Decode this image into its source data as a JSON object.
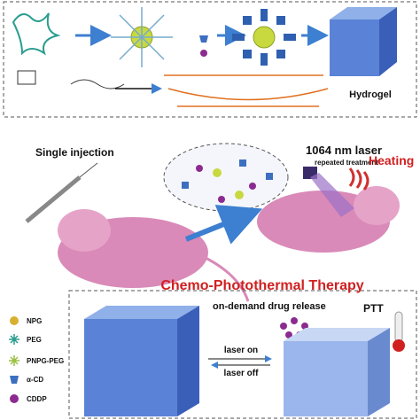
{
  "top_panel": {
    "product_label": "Hydrogel"
  },
  "middle": {
    "injection_label": "Single injection",
    "laser_label": "1064 nm laser",
    "laser_sublabel": "repeated treatment",
    "heating_label": "Heating"
  },
  "therapy": {
    "title": "Chemo-Photothermal Therapy",
    "release_label": "on-demand drug release",
    "ptt_label": "PTT",
    "laser_on": "laser on",
    "laser_off": "laser off"
  },
  "legend": {
    "items": [
      "NPG",
      "PEG",
      "PNPG-PEG",
      "α-CD",
      "CDDP"
    ]
  }
}
